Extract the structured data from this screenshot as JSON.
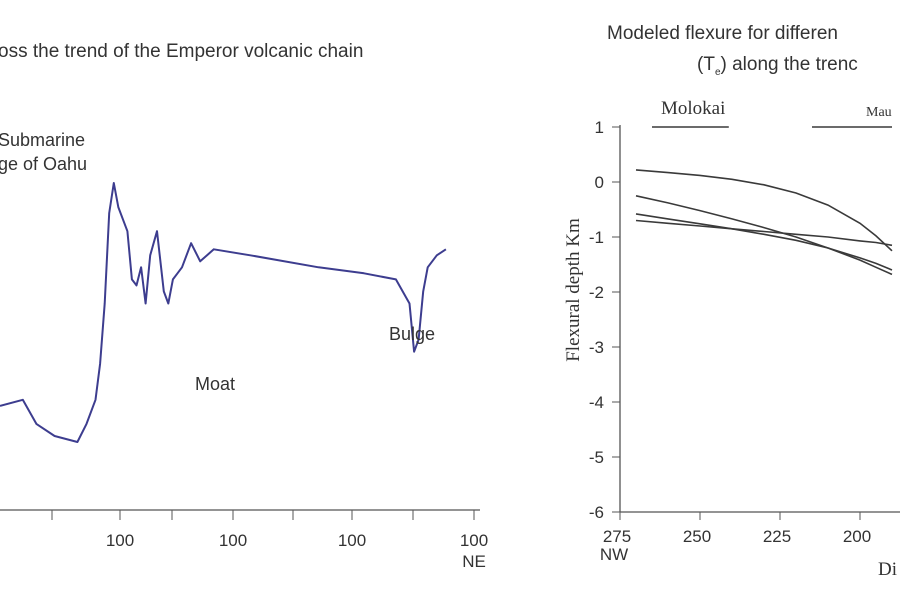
{
  "chart_data": [
    {
      "type": "line",
      "title": "oss the trend of the Emperor volcanic chain",
      "x_tick_labels": [
        "100",
        "100",
        "100",
        "100"
      ],
      "x_direction_label": "NE",
      "annotations": [
        {
          "name": "oahu-label-1",
          "text": "Submarine"
        },
        {
          "name": "oahu-label-2",
          "text": "ge of Oahu"
        },
        {
          "name": "moat-label",
          "text": "Moat"
        },
        {
          "name": "bulge-label",
          "text": "Bulge"
        }
      ],
      "series": [
        {
          "relative_profile": [
            [
              0.0,
              0.63
            ],
            [
              0.05,
              0.64
            ],
            [
              0.08,
              0.6
            ],
            [
              0.12,
              0.58
            ],
            [
              0.17,
              0.57
            ],
            [
              0.19,
              0.6
            ],
            [
              0.21,
              0.64
            ],
            [
              0.22,
              0.7
            ],
            [
              0.23,
              0.8
            ],
            [
              0.24,
              0.95
            ],
            [
              0.25,
              1.0
            ],
            [
              0.26,
              0.96
            ],
            [
              0.28,
              0.92
            ],
            [
              0.29,
              0.84
            ],
            [
              0.3,
              0.83
            ],
            [
              0.31,
              0.86
            ],
            [
              0.32,
              0.8
            ],
            [
              0.33,
              0.88
            ],
            [
              0.345,
              0.92
            ],
            [
              0.36,
              0.82
            ],
            [
              0.37,
              0.8
            ],
            [
              0.38,
              0.84
            ],
            [
              0.39,
              0.85
            ],
            [
              0.4,
              0.86
            ],
            [
              0.42,
              0.9
            ],
            [
              0.44,
              0.87
            ],
            [
              0.47,
              0.89
            ],
            [
              0.55,
              0.88
            ],
            [
              0.7,
              0.86
            ],
            [
              0.8,
              0.85
            ],
            [
              0.87,
              0.84
            ],
            [
              0.9,
              0.8
            ],
            [
              0.91,
              0.72
            ],
            [
              0.92,
              0.74
            ],
            [
              0.93,
              0.82
            ],
            [
              0.94,
              0.86
            ],
            [
              0.96,
              0.88
            ],
            [
              0.98,
              0.89
            ]
          ]
        }
      ]
    },
    {
      "type": "line",
      "title_line1": "Modeled flexure for differen",
      "title_line2_prefix": "(T",
      "title_line2_sub": "e",
      "title_line2_suffix": ") along the trenc",
      "ylabel": "Flexural depth Km",
      "xlabel": "Di",
      "x_direction_label": "NW",
      "xticks": [
        275,
        250,
        225,
        200
      ],
      "yticks": [
        1,
        0,
        -1,
        -2,
        -3,
        -4,
        -5,
        -6
      ],
      "ylim": [
        -6,
        1
      ],
      "islands": [
        {
          "name": "Molokai",
          "x_start": 265,
          "x_end": 241
        },
        {
          "name": "Mau",
          "x_start": 215,
          "x_end": 190
        }
      ],
      "series": [
        {
          "x": [
            270,
            260,
            250,
            240,
            230,
            220,
            210,
            200,
            195,
            190
          ],
          "values": [
            0.22,
            0.17,
            0.12,
            0.05,
            -0.05,
            -0.2,
            -0.42,
            -0.75,
            -0.98,
            -1.25
          ]
        },
        {
          "x": [
            270,
            260,
            250,
            240,
            230,
            220,
            210,
            200,
            195,
            190
          ],
          "values": [
            -0.25,
            -0.38,
            -0.52,
            -0.67,
            -0.83,
            -1.0,
            -1.2,
            -1.42,
            -1.55,
            -1.68
          ]
        },
        {
          "x": [
            270,
            260,
            250,
            240,
            230,
            220,
            210,
            200,
            195,
            190
          ],
          "values": [
            -0.58,
            -0.67,
            -0.76,
            -0.85,
            -0.95,
            -1.06,
            -1.2,
            -1.38,
            -1.48,
            -1.6
          ]
        },
        {
          "x": [
            270,
            260,
            250,
            240,
            230,
            220,
            210,
            200,
            195,
            190
          ],
          "values": [
            -0.7,
            -0.75,
            -0.8,
            -0.85,
            -0.9,
            -0.95,
            -1.0,
            -1.07,
            -1.1,
            -1.15
          ]
        }
      ]
    }
  ]
}
